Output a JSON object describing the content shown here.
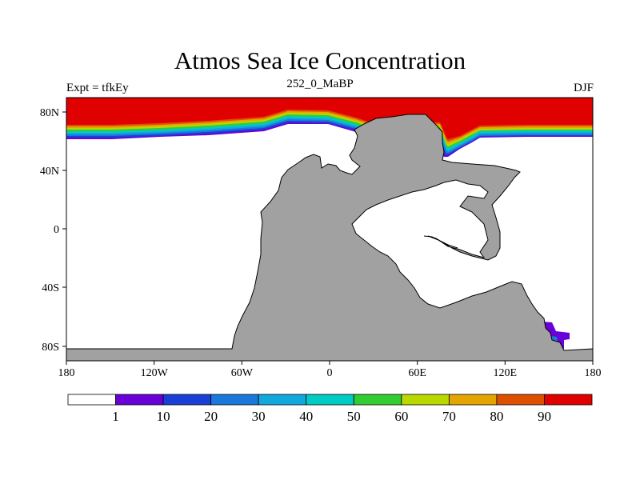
{
  "figure": {
    "title": "Atmos Sea Ice Concentration",
    "left_label": "Expt = tfkEy",
    "center_label": "252_0_MaBP",
    "right_label": "DJF"
  },
  "axes": {
    "lon_ticks": [
      "180",
      "120W",
      "60W",
      "0",
      "60E",
      "120E",
      "180"
    ],
    "lat_ticks": [
      "80N",
      "40N",
      "0",
      "40S",
      "80S"
    ],
    "lon_range": [
      -180,
      180
    ],
    "lat_range": [
      -90,
      90
    ]
  },
  "colorbar": {
    "levels": [
      "1",
      "10",
      "20",
      "30",
      "40",
      "50",
      "60",
      "70",
      "80",
      "90"
    ],
    "colors": [
      "#ffffff",
      "#6a00d8",
      "#1b3fd6",
      "#1a78dc",
      "#11a8dc",
      "#00ccc4",
      "#33cc33",
      "#b8d800",
      "#e5a500",
      "#dd5000",
      "#e00000"
    ]
  },
  "colors": {
    "land": "#a1a1a1",
    "ice_high": "#e00000"
  }
}
